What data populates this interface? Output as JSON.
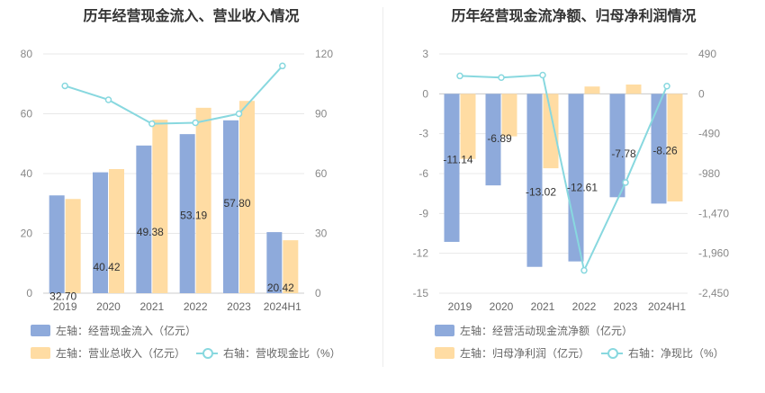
{
  "colors": {
    "bar_primary": "#8eaadb",
    "bar_secondary": "#ffdca3",
    "line": "#88d8df",
    "axis_text": "#888888",
    "grid": "#e8e8e8"
  },
  "chart_data": [
    {
      "type": "bar",
      "title": "历年经营现金流入、营业收入情况",
      "categories": [
        "2019",
        "2020",
        "2021",
        "2022",
        "2023",
        "2024H1"
      ],
      "left_axis": {
        "min": 0,
        "max": 80,
        "ticks": [
          "80",
          "60",
          "40",
          "20",
          "0"
        ]
      },
      "right_axis": {
        "min": 0,
        "max": 120,
        "ticks": [
          "120",
          "90",
          "60",
          "30",
          "0"
        ]
      },
      "series": [
        {
          "name": "左轴：经营现金流入（亿元）",
          "kind": "bar",
          "axis": "left",
          "values": [
            32.7,
            40.42,
            49.38,
            53.19,
            57.8,
            20.42
          ],
          "labels": [
            "32.70",
            "40.42",
            "49.38",
            "53.19",
            "57.80",
            "20.42"
          ]
        },
        {
          "name": "左轴：营业总收入（亿元）",
          "kind": "bar",
          "axis": "left",
          "values": [
            31.5,
            41.5,
            58.0,
            62.0,
            64.3,
            17.7
          ]
        },
        {
          "name": "右轴：营收现金比（%）",
          "kind": "line",
          "axis": "right",
          "values": [
            104,
            97,
            85,
            85.5,
            90,
            114
          ]
        }
      ]
    },
    {
      "type": "bar",
      "title": "历年经营现金流净额、归母净利润情况",
      "categories": [
        "2019",
        "2020",
        "2021",
        "2022",
        "2023",
        "2024H1"
      ],
      "left_axis": {
        "min": -15,
        "max": 3,
        "ticks": [
          "3",
          "0",
          "-3",
          "-6",
          "-9",
          "-12",
          "-15"
        ]
      },
      "right_axis": {
        "min": -2450,
        "max": 490,
        "ticks": [
          "490",
          "0",
          "-490",
          "-980",
          "-1,470",
          "-1,960",
          "-2,450"
        ]
      },
      "series": [
        {
          "name": "左轴：经营活动现金流净额（亿元）",
          "kind": "bar",
          "axis": "left",
          "values": [
            -11.14,
            -6.89,
            -13.02,
            -12.61,
            -7.78,
            -8.26
          ],
          "labels": [
            "-11.14",
            "-6.89",
            "-13.02",
            "-12.61",
            "-7.78",
            "-8.26"
          ]
        },
        {
          "name": "左轴：归母净利润（亿元）",
          "kind": "bar",
          "axis": "left",
          "values": [
            -4.9,
            -3.2,
            -5.6,
            0.55,
            0.7,
            -8.1
          ]
        },
        {
          "name": "右轴：净现比（%）",
          "kind": "line",
          "axis": "right",
          "values": [
            220,
            200,
            230,
            -2170,
            -1090,
            95
          ]
        }
      ]
    }
  ]
}
